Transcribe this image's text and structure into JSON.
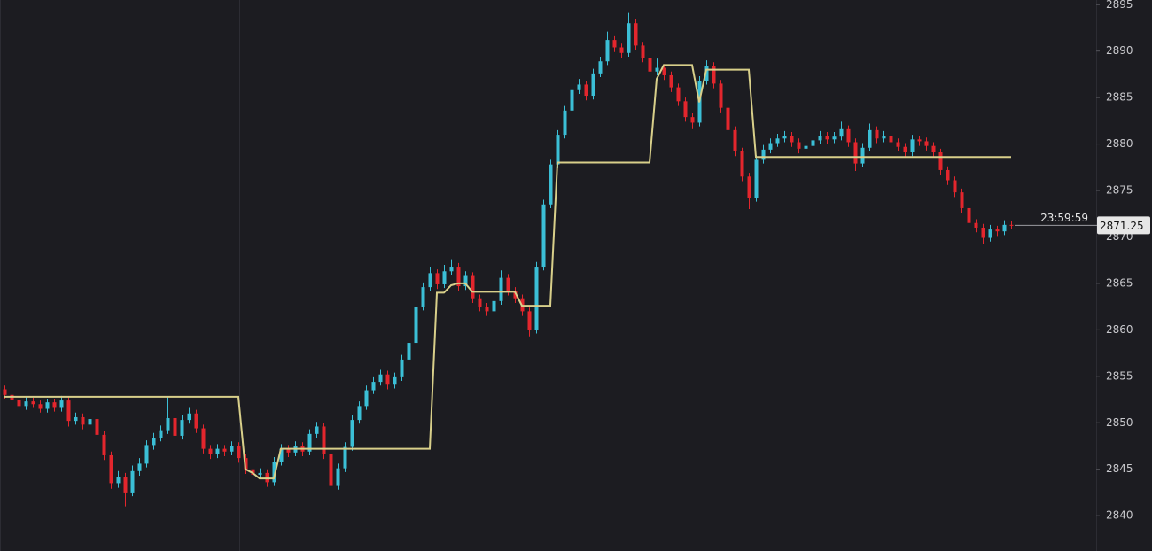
{
  "chart_data": {
    "type": "candlestick",
    "ylim": [
      2836.2,
      2895.5
    ],
    "yticks": [
      2840,
      2845,
      2850,
      2855,
      2860,
      2865,
      2870,
      2875,
      2880,
      2885,
      2890,
      2895
    ],
    "up_color": "#3bbfd6",
    "down_color": "#e3262d",
    "ohlc": [
      [
        2853.6,
        2854,
        2852.6,
        2853
      ],
      [
        2853,
        2853.4,
        2852.1,
        2852.5
      ],
      [
        2852.5,
        2852.9,
        2851.3,
        2851.8
      ],
      [
        2851.8,
        2852.8,
        2851.4,
        2852.3
      ],
      [
        2852.3,
        2852.7,
        2851.6,
        2852
      ],
      [
        2852,
        2852.4,
        2851.1,
        2851.5
      ],
      [
        2851.5,
        2852.6,
        2851.1,
        2852.2
      ],
      [
        2852.2,
        2852.6,
        2851.2,
        2851.6
      ],
      [
        2851.6,
        2852.9,
        2851.2,
        2852.4
      ],
      [
        2852.4,
        2852.8,
        2849.6,
        2850.2
      ],
      [
        2850.2,
        2851.1,
        2849.8,
        2850.6
      ],
      [
        2850.6,
        2851,
        2849.3,
        2849.8
      ],
      [
        2849.8,
        2850.9,
        2849.4,
        2850.4
      ],
      [
        2850.4,
        2850.8,
        2848.2,
        2848.7
      ],
      [
        2848.7,
        2849.1,
        2846,
        2846.5
      ],
      [
        2846.5,
        2846.9,
        2842.9,
        2843.5
      ],
      [
        2843.5,
        2844.8,
        2843,
        2844.2
      ],
      [
        2844.2,
        2844.6,
        2841,
        2842.5
      ],
      [
        2842.5,
        2845.4,
        2842.1,
        2844.8
      ],
      [
        2844.8,
        2846.2,
        2844.3,
        2845.6
      ],
      [
        2845.6,
        2848.1,
        2845.2,
        2847.6
      ],
      [
        2847.6,
        2848.9,
        2847.1,
        2848.4
      ],
      [
        2848.4,
        2849.7,
        2848,
        2849.2
      ],
      [
        2849.2,
        2852.8,
        2848.8,
        2850.5
      ],
      [
        2850.5,
        2850.9,
        2848.1,
        2848.6
      ],
      [
        2848.6,
        2850.8,
        2848.2,
        2850.3
      ],
      [
        2850.3,
        2851.6,
        2849.9,
        2851
      ],
      [
        2851,
        2851.4,
        2848.9,
        2849.4
      ],
      [
        2849.4,
        2849.8,
        2846.7,
        2847.2
      ],
      [
        2847.2,
        2847.6,
        2846.1,
        2846.6
      ],
      [
        2846.6,
        2847.7,
        2846.2,
        2847.2
      ],
      [
        2847.2,
        2847.6,
        2846.4,
        2846.9
      ],
      [
        2846.9,
        2848,
        2846.5,
        2847.5
      ],
      [
        2847.5,
        2847.9,
        2845.7,
        2846.2
      ],
      [
        2846.2,
        2846.6,
        2844.5,
        2845
      ],
      [
        2845,
        2845.4,
        2843.9,
        2844.4
      ],
      [
        2844.4,
        2845.1,
        2844,
        2844.6
      ],
      [
        2844.6,
        2845,
        2843.1,
        2843.6
      ],
      [
        2843.6,
        2846.3,
        2843.2,
        2845.8
      ],
      [
        2845.8,
        2847.7,
        2845.4,
        2847.2
      ],
      [
        2847.2,
        2847.6,
        2846.3,
        2846.8
      ],
      [
        2846.8,
        2848,
        2846.4,
        2847.5
      ],
      [
        2847.5,
        2847.9,
        2846.4,
        2846.9
      ],
      [
        2846.9,
        2849.3,
        2846.5,
        2848.8
      ],
      [
        2848.8,
        2850.1,
        2848.4,
        2849.6
      ],
      [
        2849.6,
        2850,
        2846.1,
        2846.6
      ],
      [
        2846.6,
        2847,
        2842.3,
        2843.2
      ],
      [
        2843.2,
        2845.6,
        2842.8,
        2845.1
      ],
      [
        2845.1,
        2847.9,
        2844.7,
        2847.4
      ],
      [
        2847.4,
        2850.8,
        2847,
        2850.3
      ],
      [
        2850.3,
        2852.3,
        2849.9,
        2851.8
      ],
      [
        2851.8,
        2854,
        2851.4,
        2853.5
      ],
      [
        2853.5,
        2854.9,
        2853.1,
        2854.4
      ],
      [
        2854.4,
        2855.7,
        2854,
        2855.2
      ],
      [
        2855.2,
        2855.6,
        2853.6,
        2854.1
      ],
      [
        2854.1,
        2855.4,
        2853.7,
        2854.9
      ],
      [
        2854.9,
        2857.3,
        2854.5,
        2856.8
      ],
      [
        2856.8,
        2859.1,
        2856.4,
        2858.6
      ],
      [
        2858.6,
        2863,
        2858.2,
        2862.5
      ],
      [
        2862.5,
        2865.1,
        2862.1,
        2864.6
      ],
      [
        2864.6,
        2866.8,
        2864.2,
        2866.1
      ],
      [
        2866.1,
        2866.5,
        2864.4,
        2864.9
      ],
      [
        2864.9,
        2867,
        2864.5,
        2866.3
      ],
      [
        2866.3,
        2867.6,
        2865.9,
        2866.8
      ],
      [
        2866.8,
        2867.2,
        2864.2,
        2864.7
      ],
      [
        2864.7,
        2866.3,
        2864.3,
        2865.8
      ],
      [
        2865.8,
        2866.2,
        2862.9,
        2863.4
      ],
      [
        2863.4,
        2863.8,
        2862,
        2862.5
      ],
      [
        2862.5,
        2862.9,
        2861.5,
        2862
      ],
      [
        2862,
        2863.6,
        2861.6,
        2863.1
      ],
      [
        2863.1,
        2866.4,
        2862.7,
        2865.6
      ],
      [
        2865.6,
        2866,
        2863.7,
        2864.2
      ],
      [
        2864.2,
        2864.6,
        2862.9,
        2863.4
      ],
      [
        2863.4,
        2863.8,
        2861.5,
        2862
      ],
      [
        2862,
        2862.4,
        2859.3,
        2860
      ],
      [
        2860,
        2867.3,
        2859.6,
        2866.8
      ],
      [
        2866.8,
        2874,
        2866.4,
        2873.5
      ],
      [
        2873.5,
        2878.3,
        2873.1,
        2877.8
      ],
      [
        2877.8,
        2881.5,
        2877.4,
        2881
      ],
      [
        2881,
        2884.1,
        2880.6,
        2883.6
      ],
      [
        2883.6,
        2886.3,
        2883.2,
        2885.8
      ],
      [
        2885.8,
        2887,
        2885.4,
        2886.4
      ],
      [
        2886.4,
        2886.8,
        2884.7,
        2885.2
      ],
      [
        2885.2,
        2888.1,
        2884.8,
        2887.6
      ],
      [
        2887.6,
        2889.4,
        2887.2,
        2888.9
      ],
      [
        2888.9,
        2892.1,
        2888.5,
        2891.2
      ],
      [
        2891.2,
        2891.6,
        2889.9,
        2890.4
      ],
      [
        2890.4,
        2890.8,
        2889.3,
        2889.8
      ],
      [
        2889.8,
        2894.1,
        2889.4,
        2893
      ],
      [
        2893,
        2893.4,
        2890.1,
        2890.6
      ],
      [
        2890.6,
        2891,
        2888.8,
        2889.3
      ],
      [
        2889.3,
        2889.7,
        2887.3,
        2887.8
      ],
      [
        2887.8,
        2889.2,
        2887.4,
        2888.2
      ],
      [
        2888.2,
        2888.6,
        2886.9,
        2887.4
      ],
      [
        2887.4,
        2887.8,
        2885.6,
        2886.1
      ],
      [
        2886.1,
        2886.5,
        2884.1,
        2884.6
      ],
      [
        2884.6,
        2885,
        2882.4,
        2882.9
      ],
      [
        2882.9,
        2883.3,
        2881.6,
        2882.3
      ],
      [
        2882.3,
        2887.3,
        2881.9,
        2886.8
      ],
      [
        2886.8,
        2889,
        2886.4,
        2888.4
      ],
      [
        2888.4,
        2888.8,
        2886,
        2886.5
      ],
      [
        2886.5,
        2886.9,
        2883.4,
        2883.9
      ],
      [
        2883.9,
        2884.3,
        2881,
        2881.5
      ],
      [
        2881.5,
        2881.9,
        2878.7,
        2879.2
      ],
      [
        2879.2,
        2879.6,
        2876,
        2876.5
      ],
      [
        2876.5,
        2876.9,
        2873,
        2874.2
      ],
      [
        2874.2,
        2878.8,
        2873.8,
        2878.3
      ],
      [
        2878.3,
        2879.9,
        2877.9,
        2879.4
      ],
      [
        2879.4,
        2880.6,
        2879,
        2880.1
      ],
      [
        2880.1,
        2881.1,
        2879.7,
        2880.6
      ],
      [
        2880.6,
        2881.4,
        2880.2,
        2880.9
      ],
      [
        2880.9,
        2881.3,
        2879.7,
        2880.2
      ],
      [
        2880.2,
        2880.6,
        2879,
        2879.5
      ],
      [
        2879.5,
        2880.3,
        2879.1,
        2879.8
      ],
      [
        2879.8,
        2880.9,
        2879.4,
        2880.4
      ],
      [
        2880.4,
        2881.4,
        2880,
        2880.9
      ],
      [
        2880.9,
        2881.3,
        2880,
        2880.5
      ],
      [
        2880.5,
        2881.3,
        2880.1,
        2880.8
      ],
      [
        2880.8,
        2882.4,
        2880.4,
        2881.6
      ],
      [
        2881.6,
        2882,
        2879.7,
        2880.2
      ],
      [
        2880.2,
        2880.6,
        2877.1,
        2877.9
      ],
      [
        2877.9,
        2880.1,
        2877.5,
        2879.6
      ],
      [
        2879.6,
        2882.2,
        2879.2,
        2881.5
      ],
      [
        2881.5,
        2881.9,
        2880.1,
        2880.6
      ],
      [
        2880.6,
        2881.4,
        2880.2,
        2880.9
      ],
      [
        2880.9,
        2881.3,
        2879.7,
        2880.2
      ],
      [
        2880.2,
        2880.6,
        2879.2,
        2879.7
      ],
      [
        2879.7,
        2880.1,
        2878.6,
        2879.1
      ],
      [
        2879.1,
        2881,
        2878.7,
        2880.5
      ],
      [
        2880.5,
        2880.9,
        2879.8,
        2880.3
      ],
      [
        2880.3,
        2880.7,
        2879.3,
        2879.8
      ],
      [
        2879.8,
        2880.2,
        2878.6,
        2879.1
      ],
      [
        2879.1,
        2879.5,
        2876.7,
        2877.2
      ],
      [
        2877.2,
        2877.6,
        2875.6,
        2876.1
      ],
      [
        2876.1,
        2876.5,
        2874.3,
        2874.8
      ],
      [
        2874.8,
        2875.2,
        2872.6,
        2873.1
      ],
      [
        2873.1,
        2873.5,
        2871,
        2871.5
      ],
      [
        2871.5,
        2871.9,
        2870.5,
        2871
      ],
      [
        2871,
        2871.4,
        2869.2,
        2869.9
      ],
      [
        2869.9,
        2871.3,
        2869.5,
        2870.8
      ],
      [
        2870.8,
        2871.2,
        2870.1,
        2870.6
      ],
      [
        2870.6,
        2871.8,
        2870.2,
        2871.3
      ],
      [
        2871.3,
        2871.7,
        2870.9,
        2871.25
      ]
    ],
    "overlay": {
      "type": "line",
      "color": "#d8cf8a",
      "values": [
        2852.8,
        2852.8,
        2852.8,
        2852.8,
        2852.8,
        2852.8,
        2852.8,
        2852.8,
        2852.8,
        2852.8,
        2852.8,
        2852.8,
        2852.8,
        2852.8,
        2852.8,
        2852.8,
        2852.8,
        2852.8,
        2852.8,
        2852.8,
        2852.8,
        2852.8,
        2852.8,
        2852.8,
        2852.8,
        2852.8,
        2852.8,
        2852.8,
        2852.8,
        2852.8,
        2852.8,
        2852.8,
        2852.8,
        2852.8,
        2845,
        2844.6,
        2844,
        2844,
        2844,
        2847.2,
        2847.2,
        2847.2,
        2847.2,
        2847.2,
        2847.2,
        2847.2,
        2847.2,
        2847.2,
        2847.2,
        2847.2,
        2847.2,
        2847.2,
        2847.2,
        2847.2,
        2847.2,
        2847.2,
        2847.2,
        2847.2,
        2847.2,
        2847.2,
        2847.2,
        2864,
        2864,
        2864.8,
        2865,
        2865,
        2864.1,
        2864.1,
        2864.1,
        2864.1,
        2864.1,
        2864.1,
        2864.1,
        2862.6,
        2862.6,
        2862.6,
        2862.6,
        2862.6,
        2878,
        2878,
        2878,
        2878,
        2878,
        2878,
        2878,
        2878,
        2878,
        2878,
        2878,
        2878,
        2878,
        2878,
        2887,
        2888.5,
        2888.5,
        2888.5,
        2888.5,
        2888.5,
        2884.5,
        2888,
        2888,
        2888,
        2888,
        2888,
        2888,
        2888,
        2878.6,
        2878.6,
        2878.6,
        2878.6,
        2878.6,
        2878.6,
        2878.6,
        2878.6,
        2878.6,
        2878.6,
        2878.6,
        2878.6,
        2878.6,
        2878.6,
        2878.6,
        2878.6,
        2878.6,
        2878.6,
        2878.6,
        2878.6,
        2878.6,
        2878.6,
        2878.6,
        2878.6,
        2878.6,
        2878.6,
        2878.6,
        2878.6,
        2878.6,
        2878.6,
        2878.6,
        2878.6,
        2878.6,
        2878.6,
        2878.6,
        2878.6,
        2878.6
      ]
    },
    "last_price": 2871.25,
    "countdown": "23:59:59"
  }
}
